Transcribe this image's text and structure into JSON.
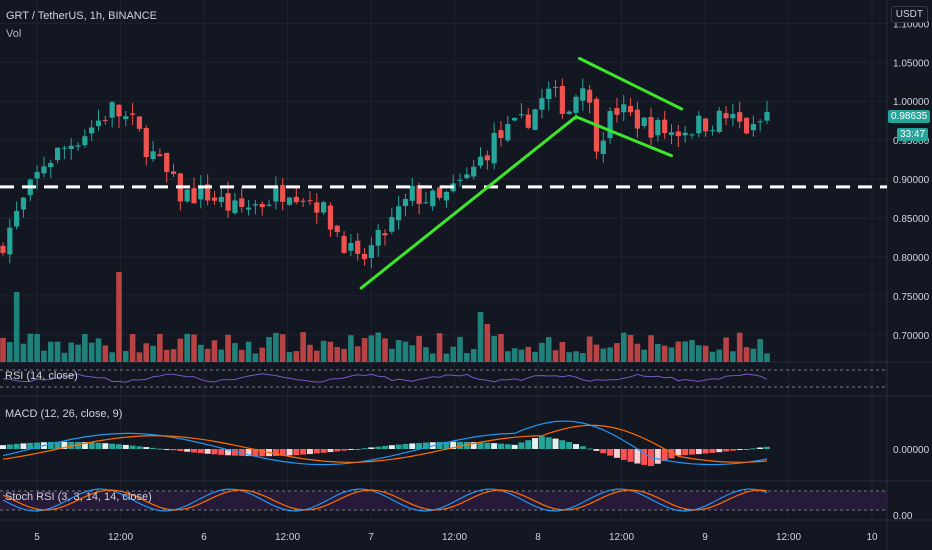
{
  "symbol_title": "GRT / TetherUS, 1h, BINANCE",
  "vol_label": "Vol",
  "currency": "USDT",
  "price_badge": "0.98635",
  "timer_badge": "33:47",
  "panes": {
    "rsi": "RSI (14, close)",
    "macd": "MACD (12, 26, close, 9)",
    "stoch": "Stoch RSI (3, 3, 14, 14, close)"
  },
  "price_ticks": [
    "1.10000",
    "1.05000",
    "1.00000",
    "0.95000",
    "0.90000",
    "0.85000",
    "0.80000",
    "0.75000",
    "0.70000"
  ],
  "macd_tick": "0.00000",
  "stoch_tick": "0.00",
  "time_ticks": [
    "5",
    "12:00",
    "6",
    "12:00",
    "7",
    "12:00",
    "8",
    "12:00",
    "9",
    "12:00",
    "10"
  ],
  "colors": {
    "background": "#131722",
    "up": "#26a69a",
    "down": "#ef5350",
    "pattern_lines": "#3ee62b",
    "dashed_level": "#ffffff",
    "macd_line": "#2196f3",
    "signal_line": "#ff6d00",
    "stoch_k": "#2196f3",
    "stoch_d": "#ff6d00",
    "rsi_line": "#7e57c2"
  },
  "chart_data": {
    "type": "candlestick",
    "title": "GRT / TetherUS, 1h, BINANCE",
    "y_range": [
      0.665,
      1.13
    ],
    "horizontal_level": 0.89,
    "last_price": 0.98635,
    "x_range": [
      "5",
      "10"
    ],
    "anchor_points": [
      {
        "t": 0,
        "price": 0.82
      },
      {
        "t": 6,
        "price": 0.92
      },
      {
        "t": 12,
        "price": 0.96
      },
      {
        "t": 16,
        "price": 0.99
      },
      {
        "t": 19,
        "price": 0.97
      },
      {
        "t": 22,
        "price": 0.93
      },
      {
        "t": 26,
        "price": 0.88
      },
      {
        "t": 30,
        "price": 0.88
      },
      {
        "t": 34,
        "price": 0.86
      },
      {
        "t": 38,
        "price": 0.87
      },
      {
        "t": 42,
        "price": 0.89
      },
      {
        "t": 46,
        "price": 0.87
      },
      {
        "t": 50,
        "price": 0.82
      },
      {
        "t": 52,
        "price": 0.79
      },
      {
        "t": 55,
        "price": 0.82
      },
      {
        "t": 60,
        "price": 0.88
      },
      {
        "t": 64,
        "price": 0.87
      },
      {
        "t": 68,
        "price": 0.9
      },
      {
        "t": 72,
        "price": 0.95
      },
      {
        "t": 76,
        "price": 0.97
      },
      {
        "t": 80,
        "price": 1.01
      },
      {
        "t": 83,
        "price": 0.99
      },
      {
        "t": 85,
        "price": 1.03
      },
      {
        "t": 87,
        "price": 0.95
      },
      {
        "t": 90,
        "price": 0.99
      },
      {
        "t": 94,
        "price": 0.97
      },
      {
        "t": 98,
        "price": 0.96
      },
      {
        "t": 102,
        "price": 0.97
      },
      {
        "t": 106,
        "price": 0.98
      },
      {
        "t": 110,
        "price": 0.96
      },
      {
        "t": 112,
        "price": 0.98635
      }
    ],
    "pattern_lines": [
      {
        "from": {
          "t": 52.5,
          "price": 0.76
        },
        "to": {
          "t": 84,
          "price": 0.98
        }
      },
      {
        "from": {
          "t": 84,
          "price": 0.98
        },
        "to": {
          "t": 98,
          "price": 0.93
        }
      },
      {
        "from": {
          "t": 84.5,
          "price": 1.055
        },
        "to": {
          "t": 99.5,
          "price": 0.99
        }
      }
    ]
  }
}
